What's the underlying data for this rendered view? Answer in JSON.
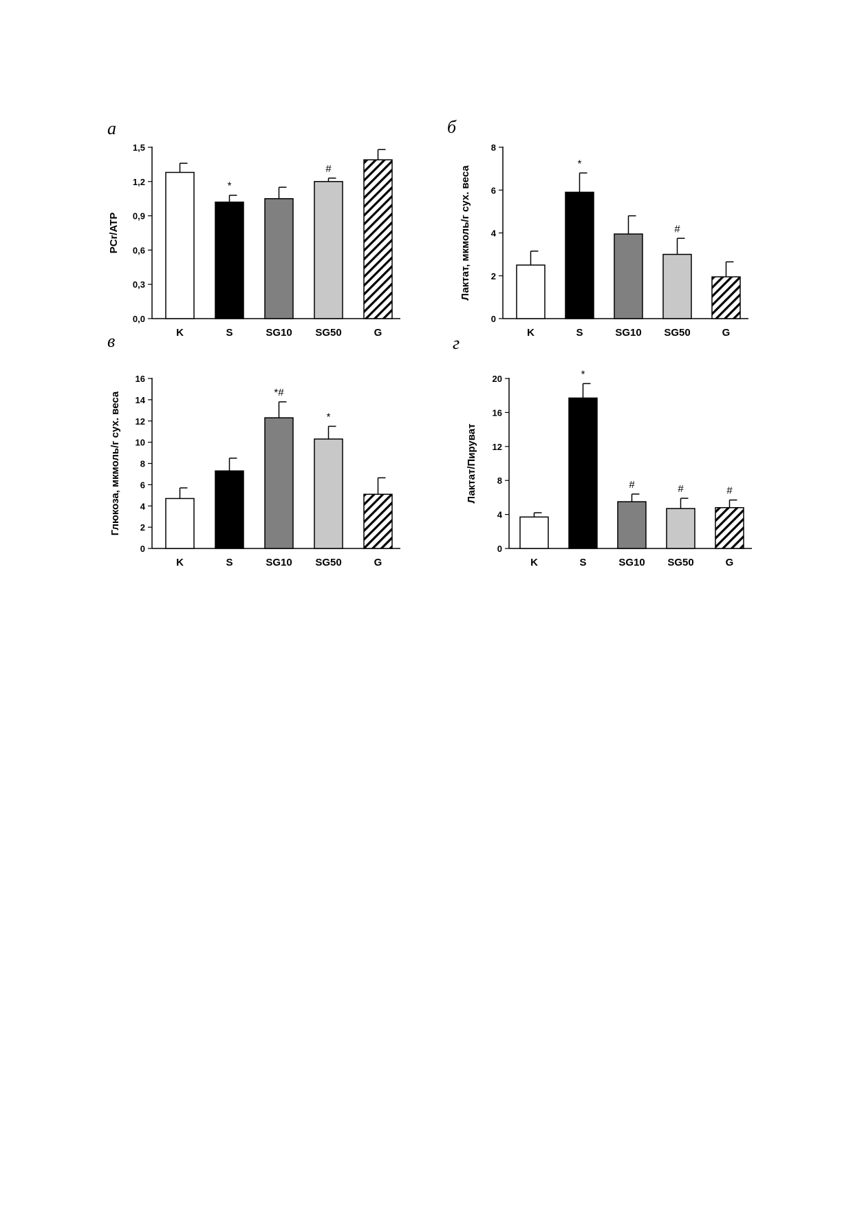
{
  "chart_data": [
    {
      "panel": "а",
      "type": "bar",
      "categories": [
        "K",
        "S",
        "SG10",
        "SG50",
        "G"
      ],
      "values": [
        1.28,
        1.02,
        1.05,
        1.2,
        1.39
      ],
      "errors": [
        0.08,
        0.06,
        0.1,
        0.03,
        0.09
      ],
      "annotations": [
        "",
        "*",
        "",
        "#",
        ""
      ],
      "ylabel": "PCr/ATP",
      "ylim": [
        0,
        1.5
      ],
      "yticks": [
        0,
        0.3,
        0.6,
        0.9,
        1.2,
        1.5
      ],
      "ytick_labels": [
        "0,0",
        "0,3",
        "0,6",
        "0,9",
        "1,2",
        "1,5"
      ]
    },
    {
      "panel": "б",
      "type": "bar",
      "categories": [
        "K",
        "S",
        "SG10",
        "SG50",
        "G"
      ],
      "values": [
        2.5,
        5.9,
        3.95,
        3.0,
        1.95
      ],
      "errors": [
        0.65,
        0.9,
        0.85,
        0.75,
        0.7
      ],
      "annotations": [
        "",
        "*",
        "",
        "#",
        ""
      ],
      "ylabel": "Лактат, мкмоль/г сух. веса",
      "ylim": [
        0,
        8
      ],
      "yticks": [
        0,
        2,
        4,
        6,
        8
      ],
      "ytick_labels": [
        "0",
        "2",
        "4",
        "6",
        "8"
      ]
    },
    {
      "panel": "в",
      "type": "bar",
      "categories": [
        "K",
        "S",
        "SG10",
        "SG50",
        "G"
      ],
      "values": [
        4.7,
        7.3,
        12.3,
        10.3,
        5.1
      ],
      "errors": [
        1.0,
        1.2,
        1.5,
        1.2,
        1.55
      ],
      "annotations": [
        "",
        "",
        "*#",
        "*",
        ""
      ],
      "ylabel": "Глюкоза, мкмоль/г сух. веса",
      "ylim": [
        0,
        16
      ],
      "yticks": [
        0,
        2,
        4,
        6,
        8,
        10,
        12,
        14,
        16
      ],
      "ytick_labels": [
        "0",
        "2",
        "4",
        "6",
        "8",
        "10",
        "12",
        "14",
        "16"
      ]
    },
    {
      "panel": "г",
      "type": "bar",
      "categories": [
        "K",
        "S",
        "SG10",
        "SG50",
        "G"
      ],
      "values": [
        3.7,
        17.7,
        5.5,
        4.7,
        4.8
      ],
      "errors": [
        0.5,
        1.7,
        0.9,
        1.2,
        0.9
      ],
      "annotations": [
        "",
        "*",
        "#",
        "#",
        "#"
      ],
      "ylabel": "Лактат/Пируват",
      "ylim": [
        0,
        20
      ],
      "yticks": [
        0,
        4,
        8,
        12,
        16,
        20
      ],
      "ytick_labels": [
        "0",
        "4",
        "8",
        "12",
        "16",
        "20"
      ]
    }
  ],
  "bar_fills": [
    "#ffffff",
    "#000000",
    "#808080",
    "#c8c8c8",
    "hatch"
  ]
}
